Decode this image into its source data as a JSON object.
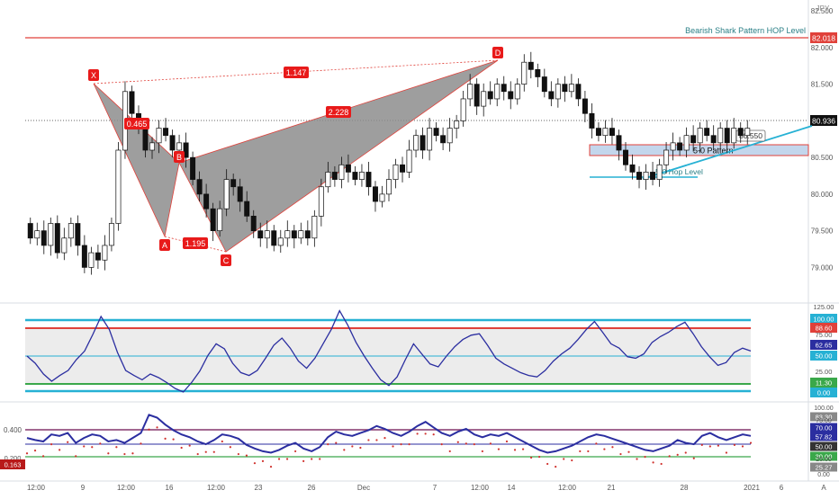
{
  "chart_data": [
    {
      "type": "candlestick",
      "pane": "price",
      "currency_label": "JPY",
      "price_axis_ticks": [
        "82.500",
        "82.000",
        "81.500",
        "81.000",
        "80.500",
        "80.000",
        "79.500",
        "79.000"
      ],
      "current_price": "80.936",
      "hop_price": "82.018",
      "box_price": "80.550",
      "ylim": [
        78.6,
        82.6
      ],
      "time_axis_labels": [
        "12:00",
        "9",
        "12:00",
        "16",
        "12:00",
        "23",
        "26",
        "Dec",
        "7",
        "12:00",
        "14",
        "12:00",
        "21",
        "28",
        "2021",
        "6",
        "A"
      ],
      "series": [
        {
          "values": [
            [
              79.6,
              79.4
            ],
            [
              79.4,
              79.5
            ],
            [
              79.5,
              79.3
            ],
            [
              79.3,
              79.6
            ],
            [
              79.6,
              79.2
            ],
            [
              79.2,
              79.4
            ],
            [
              79.4,
              79.6
            ],
            [
              79.6,
              79.3
            ],
            [
              79.3,
              79.0
            ],
            [
              79.0,
              79.2
            ],
            [
              79.2,
              79.1
            ],
            [
              79.1,
              79.3
            ],
            [
              79.3,
              79.6
            ],
            [
              79.6,
              80.6
            ],
            [
              80.6,
              81.4
            ],
            [
              81.4,
              81.1
            ],
            [
              81.1,
              80.9
            ],
            [
              80.9,
              80.6
            ],
            [
              80.6,
              80.7
            ],
            [
              80.7,
              80.9
            ],
            [
              80.9,
              80.8
            ],
            [
              80.8,
              80.6
            ],
            [
              80.6,
              80.7
            ],
            [
              80.7,
              80.5
            ],
            [
              80.5,
              80.2
            ],
            [
              80.2,
              80.0
            ],
            [
              80.0,
              79.8
            ],
            [
              79.8,
              79.5
            ],
            [
              79.5,
              79.8
            ],
            [
              79.8,
              80.2
            ],
            [
              80.2,
              80.1
            ],
            [
              80.1,
              79.9
            ],
            [
              79.9,
              79.7
            ],
            [
              79.7,
              79.5
            ],
            [
              79.5,
              79.4
            ],
            [
              79.4,
              79.5
            ],
            [
              79.5,
              79.3
            ],
            [
              79.3,
              79.4
            ],
            [
              79.4,
              79.5
            ],
            [
              79.5,
              79.4
            ],
            [
              79.4,
              79.5
            ],
            [
              79.5,
              79.4
            ],
            [
              79.4,
              79.7
            ],
            [
              79.7,
              80.1
            ],
            [
              80.1,
              80.3
            ],
            [
              80.3,
              80.2
            ],
            [
              80.2,
              80.4
            ],
            [
              80.4,
              80.3
            ],
            [
              80.3,
              80.2
            ],
            [
              80.2,
              80.3
            ],
            [
              80.3,
              80.1
            ],
            [
              80.1,
              79.9
            ],
            [
              79.9,
              80.0
            ],
            [
              80.0,
              80.2
            ],
            [
              80.2,
              80.4
            ],
            [
              80.4,
              80.3
            ],
            [
              80.3,
              80.6
            ],
            [
              80.6,
              80.8
            ],
            [
              80.8,
              80.6
            ],
            [
              80.6,
              80.9
            ],
            [
              80.9,
              80.8
            ],
            [
              80.8,
              80.7
            ],
            [
              80.7,
              80.9
            ],
            [
              80.9,
              81.0
            ],
            [
              81.0,
              81.3
            ],
            [
              81.3,
              81.5
            ],
            [
              81.5,
              81.2
            ],
            [
              81.2,
              81.4
            ],
            [
              81.4,
              81.3
            ],
            [
              81.3,
              81.5
            ],
            [
              81.5,
              81.4
            ],
            [
              81.4,
              81.3
            ],
            [
              81.3,
              81.5
            ],
            [
              81.5,
              81.8
            ],
            [
              81.8,
              81.7
            ],
            [
              81.7,
              81.6
            ],
            [
              81.6,
              81.4
            ],
            [
              81.4,
              81.3
            ],
            [
              81.3,
              81.5
            ],
            [
              81.5,
              81.4
            ],
            [
              81.4,
              81.5
            ],
            [
              81.5,
              81.3
            ],
            [
              81.3,
              81.1
            ],
            [
              81.1,
              80.9
            ],
            [
              80.9,
              80.8
            ],
            [
              80.8,
              80.9
            ],
            [
              80.9,
              80.8
            ],
            [
              80.8,
              80.6
            ],
            [
              80.6,
              80.4
            ],
            [
              80.4,
              80.3
            ],
            [
              80.3,
              80.2
            ],
            [
              80.2,
              80.3
            ],
            [
              80.3,
              80.2
            ],
            [
              80.2,
              80.4
            ],
            [
              80.4,
              80.6
            ],
            [
              80.6,
              80.7
            ],
            [
              80.7,
              80.6
            ],
            [
              80.6,
              80.8
            ],
            [
              80.8,
              80.7
            ],
            [
              80.7,
              80.9
            ],
            [
              80.9,
              80.8
            ],
            [
              80.8,
              80.7
            ],
            [
              80.7,
              80.9
            ],
            [
              80.9,
              80.7
            ],
            [
              80.7,
              80.9
            ],
            [
              80.9,
              80.8
            ],
            [
              80.8,
              80.9
            ]
          ]
        }
      ],
      "annotations": [
        {
          "label": "X",
          "value": "0.465"
        },
        {
          "label": "A",
          "value": "1.195"
        },
        {
          "label": "B",
          "value": "2.228"
        },
        {
          "label": "C",
          "value": ""
        },
        {
          "label": "D",
          "value": "1.147"
        }
      ],
      "texts": {
        "hop_title": "Bearish Shark Pattern HOP Level",
        "zone_label": "5-0 Pattern",
        "hop_label": "5-0 Hop Level"
      }
    },
    {
      "type": "line",
      "pane": "oscillator_1",
      "ylim": [
        -5,
        125
      ],
      "axis_ticks": [
        "125.00",
        "100.00",
        "75.00",
        "50.00",
        "25.00",
        "0.00"
      ],
      "level_labels": [
        "100.00",
        "88.60",
        "62.65",
        "50.00",
        "11.30",
        "0.00"
      ],
      "values": [
        55,
        45,
        30,
        20,
        28,
        35,
        50,
        62,
        85,
        110,
        92,
        60,
        35,
        28,
        22,
        30,
        25,
        18,
        10,
        5,
        18,
        34,
        56,
        72,
        65,
        45,
        32,
        28,
        35,
        52,
        70,
        80,
        66,
        48,
        38,
        52,
        72,
        92,
        118,
        98,
        74,
        55,
        38,
        22,
        14,
        26,
        50,
        72,
        58,
        44,
        40,
        55,
        68,
        78,
        84,
        86,
        70,
        52,
        44,
        38,
        32,
        28,
        26,
        35,
        48,
        58,
        66,
        78,
        92,
        103,
        88,
        72,
        66,
        54,
        52,
        58,
        74,
        82,
        88,
        96,
        102,
        86,
        68,
        54,
        42,
        46,
        60,
        66,
        62
      ]
    },
    {
      "type": "line",
      "pane": "oscillator_2",
      "axis_ticks": [
        "100.00",
        "75.00",
        "50.00",
        "25.00",
        "0.00"
      ],
      "left_ticks": [
        "0.400",
        "0.200",
        "0.163"
      ],
      "level_labels": [
        "83.30",
        "70.00",
        "57.82",
        "50.00",
        "30.00",
        "25.27"
      ],
      "ylim": [
        0,
        100
      ],
      "values": [
        55,
        52,
        50,
        60,
        58,
        62,
        48,
        55,
        60,
        58,
        50,
        52,
        48,
        55,
        62,
        88,
        84,
        74,
        66,
        60,
        56,
        50,
        46,
        52,
        60,
        58,
        54,
        45,
        40,
        36,
        34,
        38,
        44,
        48,
        40,
        36,
        42,
        56,
        64,
        60,
        58,
        62,
        66,
        72,
        68,
        62,
        58,
        64,
        72,
        78,
        70,
        62,
        58,
        64,
        68,
        60,
        56,
        60,
        58,
        62,
        56,
        50,
        44,
        38,
        34,
        36,
        40,
        44,
        50,
        56,
        60,
        58,
        54,
        50,
        46,
        42,
        38,
        36,
        40,
        44,
        52,
        48,
        46,
        58,
        62,
        56,
        52,
        56,
        60,
        58
      ]
    }
  ]
}
